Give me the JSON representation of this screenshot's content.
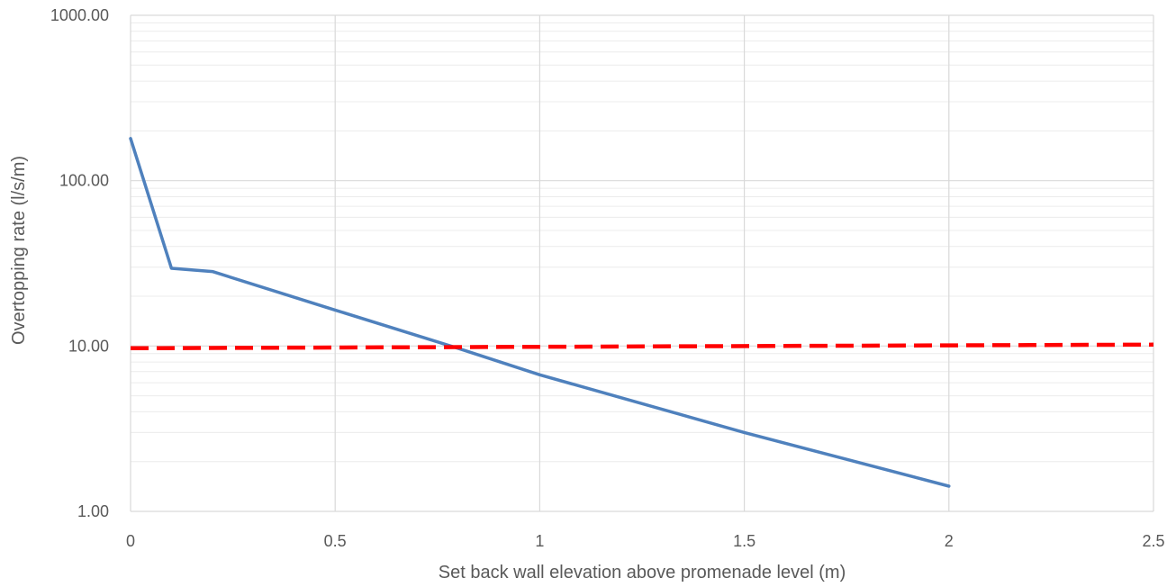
{
  "chart_data": {
    "type": "line",
    "title": "",
    "xlabel": "Set back wall elevation above promenade level (m)",
    "ylabel": "Overtopping rate (l/s/m)",
    "xlim": [
      0,
      2.5
    ],
    "ylim": [
      1,
      1000
    ],
    "yscale": "log",
    "grid": true,
    "legend": "none",
    "x_ticks": [
      {
        "value": 0,
        "label": "0"
      },
      {
        "value": 0.5,
        "label": "0.5"
      },
      {
        "value": 1,
        "label": "1"
      },
      {
        "value": 1.5,
        "label": "1.5"
      },
      {
        "value": 2,
        "label": "2"
      },
      {
        "value": 2.5,
        "label": "2.5"
      }
    ],
    "y_ticks": [
      {
        "value": 1,
        "label": "1.00"
      },
      {
        "value": 10,
        "label": "10.00"
      },
      {
        "value": 100,
        "label": "100.00"
      },
      {
        "value": 1000,
        "label": "1000.00"
      }
    ],
    "series": [
      {
        "style": "solid",
        "color": "#4f81bd",
        "x": [
          0,
          0.1,
          0.2,
          0.5,
          0.8,
          1.0,
          1.5,
          2.0
        ],
        "y": [
          180,
          29.5,
          28.2,
          16.5,
          9.7,
          6.7,
          3.0,
          1.42
        ]
      },
      {
        "style": "dashed",
        "color": "#ff0000",
        "x": [
          0,
          2.5
        ],
        "y": [
          9.7,
          10.2
        ]
      }
    ]
  }
}
